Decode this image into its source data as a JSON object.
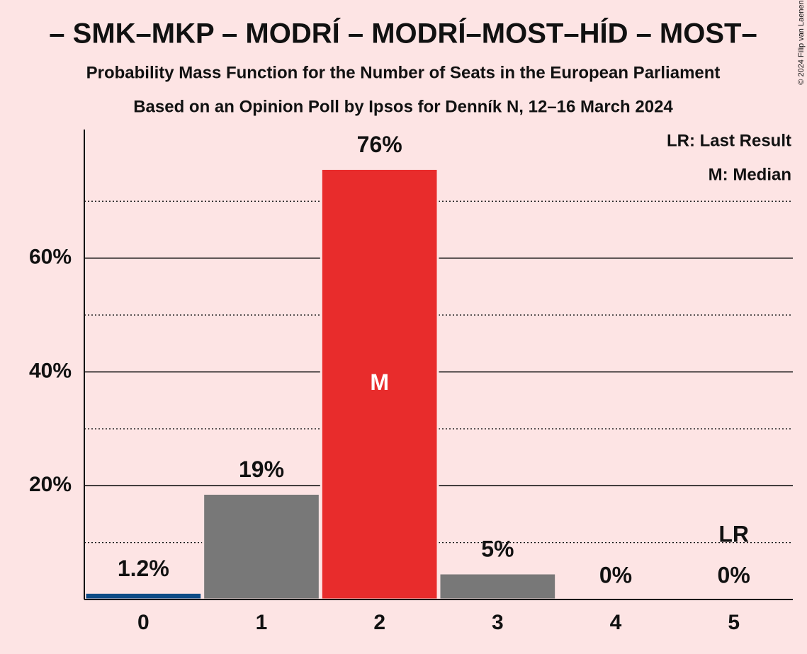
{
  "chart_data": {
    "type": "bar",
    "title": "– SMK–MKP – MODRÍ – MODRÍ–MOST–HÍD – MOST–",
    "subtitle": "Probability Mass Function for the Number of Seats in the European Parliament",
    "subtitle2": "Based on an Opinion Poll by Ipsos for Denník N, 12–16 March 2024",
    "copyright": "© 2024 Filip van Laenen",
    "legend": [
      "LR: Last Result",
      "M: Median"
    ],
    "categories": [
      0,
      1,
      2,
      3,
      4,
      5
    ],
    "values": [
      1.2,
      18.6,
      75.7,
      4.6,
      0,
      0
    ],
    "value_labels": [
      "1.2%",
      "19%",
      "76%",
      "5%",
      "0%",
      "0%"
    ],
    "colors": [
      "#0e4c86",
      "#787878",
      "#e82c2c",
      "#787878",
      "#787878",
      "#787878"
    ],
    "annotations": [
      {
        "text": "M",
        "category": 2
      },
      {
        "text": "LR",
        "category": 5
      }
    ],
    "ylim": [
      0,
      82.6
    ],
    "yticks": [
      {
        "value": 20,
        "label": "20%"
      },
      {
        "value": 40,
        "label": "40%"
      },
      {
        "value": 60,
        "label": "60%"
      }
    ],
    "minor_yticks": [
      10,
      30,
      50,
      70
    ],
    "grid": true
  }
}
